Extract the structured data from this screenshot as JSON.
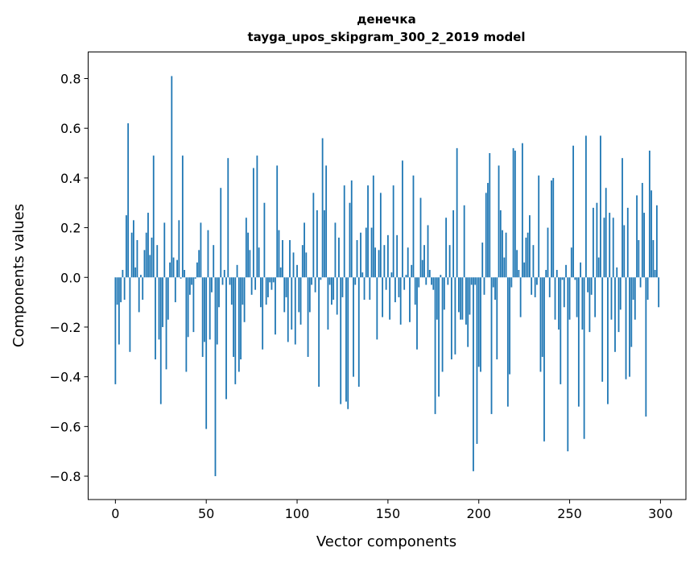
{
  "chart_data": {
    "type": "bar",
    "title": "денечка",
    "subtitle": "tayga_upos_skipgram_300_2_2019 model",
    "xlabel": "Vector components",
    "ylabel": "Components values",
    "xlim": [
      -15,
      314
    ],
    "ylim": [
      -0.894,
      0.907
    ],
    "xticks": [
      0,
      50,
      100,
      150,
      200,
      250,
      300
    ],
    "xtick_labels": [
      "0",
      "50",
      "100",
      "150",
      "200",
      "250",
      "300"
    ],
    "yticks": [
      -0.8,
      -0.6,
      -0.4,
      -0.2,
      0.0,
      0.2,
      0.4,
      0.6,
      0.8
    ],
    "ytick_labels": [
      "−0.8",
      "−0.6",
      "−0.4",
      "−0.2",
      "0.0",
      "0.2",
      "0.4",
      "0.6",
      "0.8"
    ],
    "grid": false,
    "bar_color": "#1f77b4",
    "values": [
      -0.43,
      -0.11,
      -0.27,
      -0.1,
      0.03,
      -0.09,
      0.25,
      0.62,
      -0.3,
      0.18,
      0.23,
      0.04,
      0.15,
      -0.14,
      0.01,
      -0.09,
      0.11,
      0.18,
      0.26,
      0.09,
      0.16,
      0.49,
      -0.33,
      0.13,
      -0.25,
      -0.51,
      -0.2,
      0.22,
      -0.37,
      -0.17,
      0.06,
      0.81,
      0.08,
      -0.1,
      0.07,
      0.23,
      -0.005,
      0.49,
      0.03,
      -0.38,
      -0.24,
      -0.07,
      -0.03,
      -0.22,
      -0.005,
      0.06,
      0.11,
      0.22,
      -0.32,
      -0.26,
      -0.61,
      0.19,
      -0.25,
      -0.06,
      0.13,
      -0.8,
      -0.27,
      -0.12,
      0.36,
      -0.03,
      0.03,
      -0.49,
      0.48,
      -0.03,
      -0.11,
      -0.32,
      -0.43,
      0.05,
      -0.38,
      -0.33,
      -0.11,
      -0.18,
      0.24,
      0.18,
      0.11,
      -0.07,
      0.44,
      -0.05,
      0.49,
      0.12,
      -0.12,
      -0.29,
      0.3,
      -0.11,
      -0.08,
      -0.02,
      -0.05,
      -0.02,
      -0.23,
      0.45,
      0.19,
      0.04,
      0.15,
      -0.14,
      -0.08,
      -0.26,
      0.15,
      -0.21,
      0.1,
      -0.27,
      0.05,
      -0.14,
      -0.19,
      0.13,
      0.22,
      0.1,
      -0.32,
      -0.14,
      -0.03,
      0.34,
      -0.06,
      0.27,
      -0.44,
      -0.01,
      0.56,
      0.27,
      0.45,
      -0.21,
      -0.03,
      -0.11,
      -0.09,
      0.22,
      -0.15,
      0.16,
      -0.51,
      -0.08,
      0.37,
      -0.5,
      -0.53,
      0.3,
      0.39,
      -0.4,
      -0.03,
      0.15,
      -0.44,
      0.18,
      0.02,
      -0.09,
      0.2,
      0.37,
      -0.09,
      0.2,
      0.41,
      0.12,
      -0.25,
      0.11,
      0.34,
      -0.16,
      0.13,
      -0.05,
      0.17,
      -0.17,
      0.02,
      0.37,
      -0.1,
      0.17,
      -0.08,
      -0.19,
      0.47,
      -0.05,
      0.01,
      0.12,
      -0.18,
      0.05,
      0.41,
      -0.11,
      -0.29,
      -0.04,
      0.32,
      0.07,
      0.13,
      -0.03,
      0.21,
      0.03,
      -0.03,
      -0.05,
      -0.55,
      -0.17,
      -0.48,
      0.01,
      -0.38,
      -0.13,
      0.24,
      -0.03,
      0.13,
      -0.33,
      0.27,
      -0.31,
      0.52,
      -0.14,
      -0.17,
      -0.17,
      0.29,
      -0.19,
      -0.28,
      -0.15,
      -0.03,
      -0.78,
      -0.03,
      -0.67,
      -0.36,
      -0.38,
      0.14,
      -0.07,
      0.34,
      0.38,
      0.5,
      -0.55,
      -0.04,
      -0.09,
      -0.33,
      0.45,
      0.27,
      0.19,
      0.08,
      0.18,
      -0.52,
      -0.39,
      -0.04,
      0.52,
      0.51,
      0.11,
      0.03,
      -0.16,
      0.54,
      0.06,
      0.16,
      0.18,
      0.25,
      -0.07,
      0.13,
      -0.08,
      -0.03,
      0.41,
      -0.38,
      -0.32,
      -0.66,
      0.03,
      0.2,
      -0.08,
      0.39,
      0.4,
      -0.17,
      0.03,
      -0.21,
      -0.43,
      -0.01,
      -0.12,
      0.05,
      -0.7,
      -0.17,
      0.12,
      0.53,
      -0.01,
      -0.16,
      -0.52,
      0.06,
      -0.21,
      -0.65,
      0.57,
      -0.06,
      -0.22,
      -0.07,
      0.28,
      -0.16,
      0.3,
      0.08,
      0.57,
      -0.42,
      0.24,
      0.36,
      -0.51,
      0.26,
      -0.17,
      0.24,
      -0.3,
      0.04,
      -0.22,
      -0.13,
      0.48,
      0.21,
      -0.41,
      0.28,
      -0.4,
      -0.28,
      -0.09,
      -0.17,
      0.33,
      0.15,
      -0.04,
      0.38,
      0.26,
      -0.56,
      -0.09,
      0.51,
      0.35,
      0.15,
      0.03,
      0.29,
      -0.12
    ]
  }
}
